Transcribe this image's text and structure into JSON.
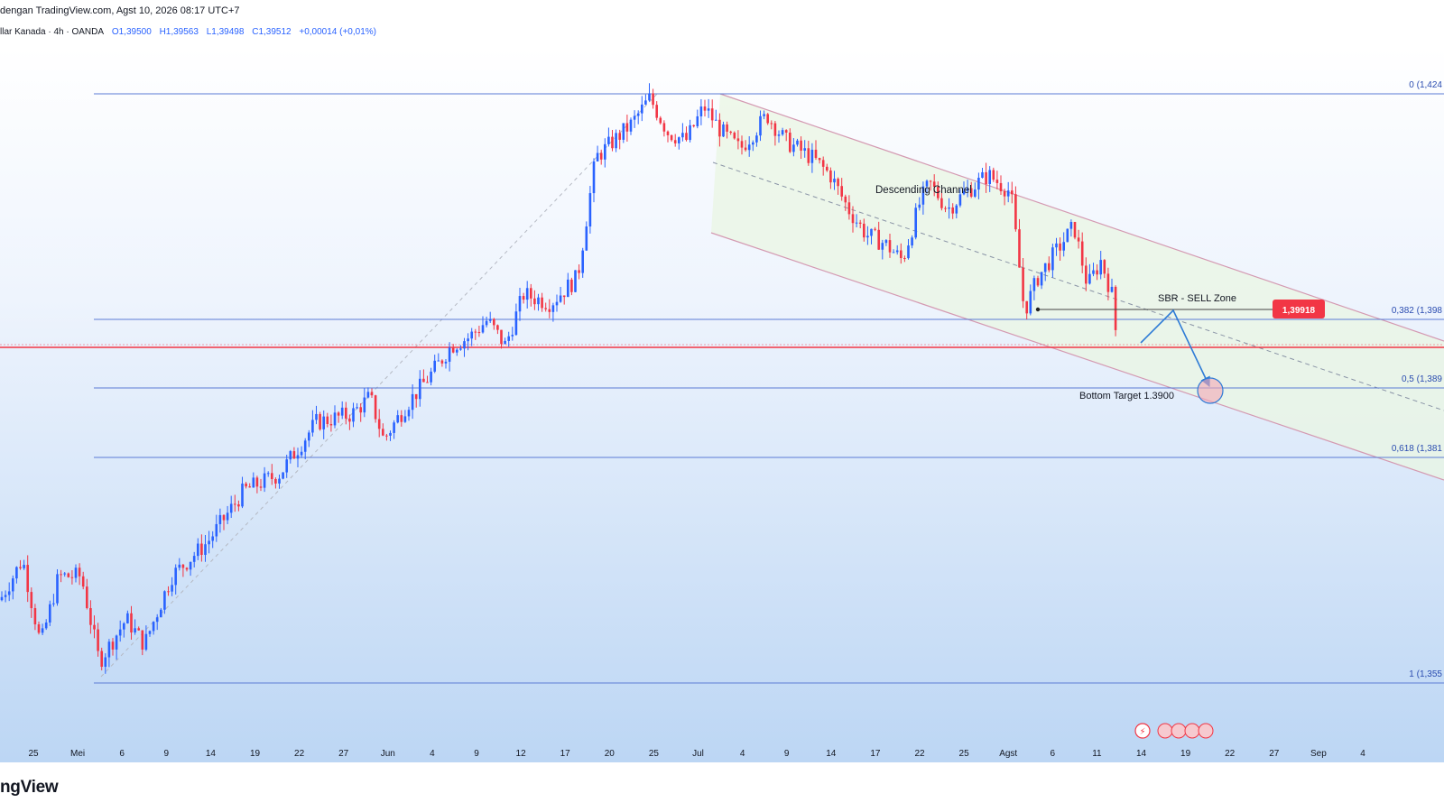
{
  "header": {
    "published": "dengan TradingView.com, Agst 10, 2026 08:17 UTC+7",
    "symbol": "llar Kanada · 4h · OANDA",
    "open": "O1,39500",
    "high": "H1,39563",
    "low": "L1,39498",
    "close": "C1,39512",
    "change": "+0,00014 (+0,01%)"
  },
  "brand": "ngView",
  "colors": {
    "up": "#2962ff",
    "down": "#f23645",
    "fib_line": "#5b7bd5",
    "price_line": "#f23645",
    "channel": "#d49ab2",
    "arrow": "#2e7bd6"
  },
  "chart_data": {
    "type": "candlestick",
    "timeframe": "4h",
    "price_range": [
      1.352,
      1.4275
    ],
    "current_price": 1.39512,
    "x_ticks": [
      "25",
      "Mei",
      "6",
      "9",
      "14",
      "19",
      "22",
      "27",
      "Jun",
      "4",
      "9",
      "12",
      "17",
      "20",
      "25",
      "Jul",
      "4",
      "9",
      "14",
      "17",
      "22",
      "25",
      "Agst",
      "6",
      "11",
      "14",
      "19",
      "22",
      "27",
      "Sep",
      "4"
    ],
    "price_path": [
      [
        0,
        1.3652
      ],
      [
        25,
        1.37
      ],
      [
        45,
        1.36
      ],
      [
        65,
        1.368
      ],
      [
        90,
        1.368
      ],
      [
        110,
        1.358
      ],
      [
        140,
        1.363
      ],
      [
        160,
        1.36
      ],
      [
        190,
        1.368
      ],
      [
        230,
        1.372
      ],
      [
        270,
        1.378
      ],
      [
        310,
        1.38
      ],
      [
        350,
        1.386
      ],
      [
        390,
        1.387
      ],
      [
        410,
        1.389
      ],
      [
        425,
        1.384
      ],
      [
        450,
        1.388
      ],
      [
        480,
        1.392
      ],
      [
        500,
        1.395
      ],
      [
        520,
        1.396
      ],
      [
        540,
        1.398
      ],
      [
        560,
        1.395
      ],
      [
        580,
        1.401
      ],
      [
        610,
        1.4
      ],
      [
        640,
        1.403
      ],
      [
        660,
        1.417
      ],
      [
        680,
        1.419
      ],
      [
        700,
        1.421
      ],
      [
        720,
        1.424
      ],
      [
        740,
        1.42
      ],
      [
        760,
        1.419
      ],
      [
        780,
        1.423
      ],
      [
        800,
        1.42
      ],
      [
        820,
        1.418
      ],
      [
        850,
        1.422
      ],
      [
        870,
        1.419
      ],
      [
        900,
        1.417
      ],
      [
        920,
        1.415
      ],
      [
        940,
        1.411
      ],
      [
        960,
        1.408
      ],
      [
        980,
        1.407
      ],
      [
        1000,
        1.405
      ],
      [
        1020,
        1.412
      ],
      [
        1030,
        1.414
      ],
      [
        1050,
        1.411
      ],
      [
        1070,
        1.413
      ],
      [
        1095,
        1.415
      ],
      [
        1120,
        1.413
      ],
      [
        1135,
        1.399
      ],
      [
        1150,
        1.403
      ],
      [
        1170,
        1.406
      ],
      [
        1190,
        1.409
      ],
      [
        1205,
        1.402
      ],
      [
        1220,
        1.405
      ],
      [
        1232,
        1.401
      ],
      [
        1238,
        1.395
      ]
    ],
    "fibonacci": [
      {
        "level": "0",
        "label": "0 (1,424"
      },
      {
        "level": "0.382",
        "label": "0,382 (1,398"
      },
      {
        "level": "0.5",
        "label": "0,5 (1,389"
      },
      {
        "level": "0.618",
        "label": "0,618 (1,381"
      },
      {
        "level": "1",
        "label": "1 (1,355"
      }
    ],
    "annotations": {
      "channel": "Descending Channel",
      "sell_zone": "SBR - SELL Zone",
      "sell_price": "1,39918",
      "target": "Bottom Target 1.3900"
    }
  }
}
